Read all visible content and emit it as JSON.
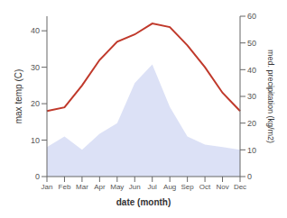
{
  "chart_data": {
    "type": "line",
    "xlabel": "date (month)",
    "ylabel": "max temp (C)",
    "y2label": "med. precipitation (kg/m2)",
    "categories": [
      "Jan",
      "Feb",
      "Mar",
      "Apr",
      "May",
      "Jun",
      "Jul",
      "Aug",
      "Sep",
      "Oct",
      "Nov",
      "Dec"
    ],
    "series": [
      {
        "type": "area",
        "axis": "y2",
        "color": "#c5cdf0",
        "values": [
          11,
          15,
          10,
          16,
          20,
          35,
          42,
          26,
          15,
          12,
          11,
          10
        ]
      },
      {
        "type": "line",
        "axis": "y",
        "color": "#c0392b",
        "values": [
          18,
          19,
          25,
          32,
          37,
          39,
          42,
          41,
          36,
          30,
          23,
          18
        ]
      }
    ],
    "ylim": [
      0,
      44
    ],
    "yticks": [
      0,
      10,
      20,
      30,
      40
    ],
    "y2lim": [
      0,
      60
    ],
    "y2ticks": [
      0,
      10,
      20,
      30,
      40,
      50,
      60
    ]
  }
}
